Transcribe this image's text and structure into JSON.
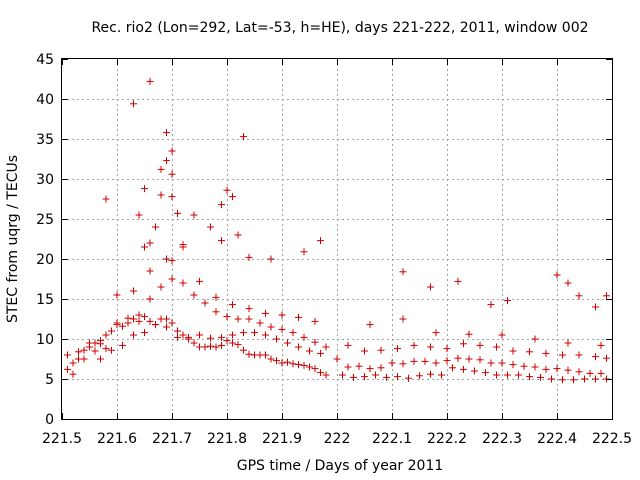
{
  "chart_data": {
    "type": "scatter",
    "title": "Rec. rio2 (Lon=292, Lat=-53, h=HE), days 221-222, 2011, window 002",
    "xlabel": "GPS time / Days of year 2011",
    "ylabel": "STEC from uqrg / TECUs",
    "xlim": [
      221.5,
      222.5
    ],
    "ylim": [
      0,
      45
    ],
    "xticks": [
      221.5,
      221.6,
      221.7,
      221.8,
      221.9,
      222.0,
      222.1,
      222.2,
      222.3,
      222.4,
      222.5
    ],
    "xtick_labels": [
      "221.5",
      "221.6",
      "221.7",
      "221.8",
      "221.9",
      "222",
      "222.1",
      "222.2",
      "222.3",
      "222.4",
      "222.5"
    ],
    "yticks": [
      0,
      5,
      10,
      15,
      20,
      25,
      30,
      35,
      40,
      45
    ],
    "ytick_labels": [
      "0",
      "5",
      "10",
      "15",
      "20",
      "25",
      "30",
      "35",
      "40",
      "45"
    ],
    "grid": true,
    "marker": "plus",
    "color": "#cc0000",
    "series": [
      {
        "name": "STEC",
        "x": [
          221.51,
          221.52,
          221.53,
          221.54,
          221.55,
          221.56,
          221.57,
          221.58,
          221.59,
          221.6,
          221.61,
          221.62,
          221.63,
          221.64,
          221.65,
          221.66,
          221.67,
          221.68,
          221.69,
          221.7,
          221.71,
          221.72,
          221.73,
          221.74,
          221.75,
          221.76,
          221.77,
          221.78,
          221.79,
          221.8,
          221.81,
          221.82,
          221.83,
          221.84,
          221.85,
          221.86,
          221.87,
          221.88,
          221.89,
          221.9,
          221.91,
          221.92,
          221.93,
          221.94,
          221.95,
          221.96,
          221.97,
          221.98,
          222.0,
          222.01,
          222.03,
          222.05,
          222.07,
          222.09,
          222.11,
          222.13,
          222.15,
          222.17,
          222.19,
          222.21,
          222.23,
          222.25,
          222.27,
          222.29,
          222.31,
          222.33,
          222.35,
          222.37,
          222.39,
          222.41,
          222.43,
          222.45,
          222.47,
          222.49,
          221.51,
          221.53,
          221.55,
          221.57,
          221.59,
          221.61,
          221.63,
          221.65,
          221.67,
          221.69,
          221.71,
          221.73,
          221.75,
          221.77,
          221.79,
          221.81,
          221.83,
          221.85,
          221.87,
          221.89,
          221.91,
          221.93,
          221.95,
          221.97,
          222.02,
          222.04,
          222.06,
          222.08,
          222.1,
          222.12,
          222.14,
          222.16,
          222.18,
          222.2,
          222.22,
          222.24,
          222.26,
          222.28,
          222.3,
          222.32,
          222.34,
          222.36,
          222.38,
          222.4,
          222.42,
          222.44,
          222.46,
          222.48,
          221.52,
          221.54,
          221.56,
          221.58,
          221.6,
          221.62,
          221.64,
          221.66,
          221.68,
          221.7,
          221.72,
          221.74,
          221.76,
          221.78,
          221.8,
          221.82,
          221.84,
          221.86,
          221.88,
          221.9,
          221.92,
          221.94,
          221.96,
          221.98,
          222.02,
          222.05,
          222.08,
          222.11,
          222.14,
          222.17,
          222.2,
          222.23,
          222.26,
          222.29,
          222.32,
          222.35,
          222.38,
          222.41,
          222.44,
          222.47,
          222.49,
          221.57,
          221.6,
          221.63,
          221.66,
          221.69,
          221.72,
          221.75,
          221.78,
          221.81,
          221.84,
          221.87,
          221.9,
          221.93,
          221.96,
          222.06,
          222.12,
          222.18,
          222.24,
          222.3,
          222.36,
          222.42,
          222.48,
          221.58,
          221.58,
          221.65,
          221.66,
          221.63,
          221.68,
          221.69,
          221.7,
          221.7,
          221.69,
          221.68,
          221.74,
          221.79,
          221.8,
          221.81,
          221.82,
          221.83,
          221.7,
          221.72,
          221.67,
          221.66,
          221.65,
          221.64,
          221.7,
          221.71,
          221.77,
          221.79,
          221.84,
          221.88,
          221.94,
          221.97,
          222.12,
          222.17,
          222.22,
          222.28,
          222.31,
          222.4,
          222.42,
          222.44,
          222.49,
          222.47
        ],
        "y": [
          6.2,
          7.0,
          7.5,
          8.6,
          9.5,
          9.5,
          9.8,
          10.5,
          11.0,
          12.0,
          11.6,
          12.0,
          12.5,
          12.2,
          12.8,
          12.2,
          11.8,
          12.5,
          12.5,
          12.0,
          11.0,
          10.5,
          10.0,
          9.5,
          9.0,
          9.0,
          9.1,
          9.0,
          9.2,
          9.8,
          9.5,
          9.3,
          8.6,
          8.1,
          8.0,
          8.0,
          8.0,
          7.5,
          7.3,
          7.0,
          7.1,
          6.9,
          6.8,
          6.7,
          6.5,
          6.3,
          5.8,
          5.5,
          7.5,
          5.5,
          5.2,
          5.3,
          5.5,
          5.2,
          5.3,
          5.1,
          5.4,
          5.6,
          5.5,
          6.4,
          6.2,
          6.0,
          5.8,
          5.5,
          5.5,
          5.5,
          5.3,
          5.2,
          5.0,
          4.9,
          4.9,
          5.0,
          5.0,
          5.0,
          8.0,
          8.4,
          9.0,
          9.4,
          8.6,
          9.2,
          10.5,
          10.8,
          11.8,
          11.5,
          10.2,
          10.2,
          10.5,
          10.1,
          10.2,
          10.5,
          10.8,
          10.8,
          10.5,
          10.0,
          9.5,
          9.0,
          8.5,
          8.2,
          6.5,
          6.6,
          6.3,
          6.4,
          7.0,
          6.9,
          7.2,
          7.2,
          7.0,
          7.3,
          7.6,
          7.5,
          7.4,
          7.0,
          7.0,
          6.8,
          6.6,
          6.5,
          6.2,
          6.3,
          6.1,
          5.9,
          5.7,
          5.7,
          5.6,
          7.5,
          8.5,
          10.5,
          11.8,
          12.6,
          13.0,
          15.0,
          16.5,
          17.5,
          17.0,
          15.5,
          14.5,
          13.4,
          12.8,
          12.5,
          12.5,
          12.0,
          11.5,
          11.2,
          10.8,
          10.2,
          9.6,
          9.0,
          9.2,
          8.5,
          8.6,
          8.8,
          9.2,
          9.0,
          8.8,
          9.4,
          9.2,
          9.0,
          8.5,
          8.4,
          8.2,
          8.0,
          8.0,
          7.8,
          7.6,
          7.5,
          15.5,
          16.0,
          18.5,
          20.0,
          21.5,
          17.2,
          15.2,
          14.3,
          13.8,
          13.2,
          13.0,
          12.7,
          12.2,
          11.8,
          12.5,
          10.8,
          10.6,
          10.5,
          10.0,
          9.5,
          9.2,
          8.8,
          27.5,
          28.8,
          42.2,
          39.4,
          31.2,
          32.3,
          30.6,
          33.5,
          35.8,
          28.0,
          25.5,
          26.8,
          28.6,
          27.8,
          23.0,
          35.3,
          27.8,
          21.8,
          24.0,
          22.0,
          21.5,
          25.5,
          19.8,
          25.7,
          24.0,
          22.3,
          20.2,
          20.0,
          20.9,
          22.3,
          18.4,
          16.5,
          17.2,
          14.3,
          14.8,
          18.0,
          17.0,
          15.4,
          15.4,
          14.0
        ]
      }
    ]
  }
}
